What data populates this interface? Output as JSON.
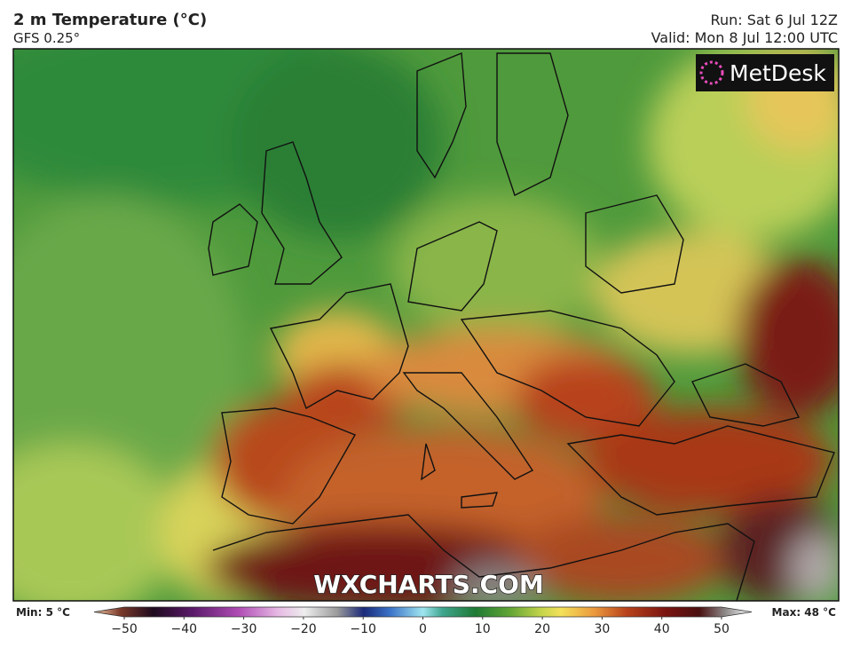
{
  "header": {
    "title": "2 m Temperature (°C)",
    "model": "GFS 0.25°",
    "run": "Run: Sat 6 Jul 12Z",
    "valid": "Valid: Mon 8 Jul 12:00 UTC"
  },
  "logo": "MetDesk",
  "watermark": "WXCHARTS.COM",
  "legend": {
    "min_label": "Min: 5 °C",
    "max_label": "Max: 48 °C",
    "lim": [
      -50,
      50
    ],
    "ticks": [
      {
        "value": -50,
        "label": "−50"
      },
      {
        "value": -40,
        "label": "−40"
      },
      {
        "value": -30,
        "label": "−30"
      },
      {
        "value": -20,
        "label": "−20"
      },
      {
        "value": -10,
        "label": "−10"
      },
      0,
      10,
      20,
      30,
      40,
      50
    ]
  }
}
